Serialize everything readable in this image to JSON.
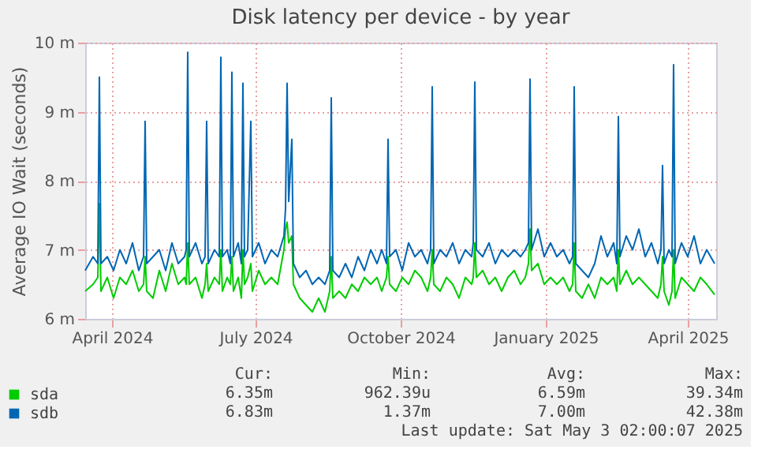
{
  "chart_data": {
    "type": "line",
    "title": "Disk latency per device - by year",
    "ylabel": "Average IO Wait (seconds)",
    "x": [
      "2024-03-29",
      "2024-04-03",
      "2024-04-06",
      "2024-04-07",
      "2024-04-08",
      "2024-04-12",
      "2024-04-16",
      "2024-04-20",
      "2024-04-24",
      "2024-04-28",
      "2024-05-02",
      "2024-05-05",
      "2024-05-06",
      "2024-05-07",
      "2024-05-11",
      "2024-05-15",
      "2024-05-19",
      "2024-05-23",
      "2024-05-27",
      "2024-05-31",
      "2024-06-01",
      "2024-06-02",
      "2024-06-03",
      "2024-06-07",
      "2024-06-11",
      "2024-06-13",
      "2024-06-14",
      "2024-06-15",
      "2024-06-19",
      "2024-06-22",
      "2024-06-23",
      "2024-06-24",
      "2024-06-27",
      "2024-06-29",
      "2024-06-30",
      "2024-07-01",
      "2024-07-04",
      "2024-07-06",
      "2024-07-07",
      "2024-07-08",
      "2024-07-10",
      "2024-07-12",
      "2024-07-13",
      "2024-07-17",
      "2024-07-21",
      "2024-07-25",
      "2024-07-29",
      "2024-08-02",
      "2024-08-03",
      "2024-08-04",
      "2024-08-05",
      "2024-08-07",
      "2024-08-08",
      "2024-08-12",
      "2024-08-16",
      "2024-08-20",
      "2024-08-24",
      "2024-08-28",
      "2024-08-31",
      "2024-09-01",
      "2024-09-02",
      "2024-09-06",
      "2024-09-10",
      "2024-09-14",
      "2024-09-18",
      "2024-09-22",
      "2024-09-26",
      "2024-09-30",
      "2024-10-03",
      "2024-10-06",
      "2024-10-07",
      "2024-10-08",
      "2024-10-12",
      "2024-10-16",
      "2024-10-20",
      "2024-10-24",
      "2024-10-28",
      "2024-11-01",
      "2024-11-03",
      "2024-11-04",
      "2024-11-05",
      "2024-11-09",
      "2024-11-13",
      "2024-11-17",
      "2024-11-21",
      "2024-11-25",
      "2024-11-29",
      "2024-11-30",
      "2024-12-01",
      "2024-12-02",
      "2024-12-06",
      "2024-12-10",
      "2024-12-14",
      "2024-12-18",
      "2024-12-22",
      "2024-12-26",
      "2024-12-30",
      "2025-01-02",
      "2025-01-04",
      "2025-01-05",
      "2025-01-06",
      "2025-01-10",
      "2025-01-14",
      "2025-01-18",
      "2025-01-22",
      "2025-01-26",
      "2025-01-30",
      "2025-02-01",
      "2025-02-02",
      "2025-02-03",
      "2025-02-07",
      "2025-02-11",
      "2025-02-15",
      "2025-02-19",
      "2025-02-23",
      "2025-02-27",
      "2025-03-01",
      "2025-03-02",
      "2025-03-03",
      "2025-03-07",
      "2025-03-11",
      "2025-03-15",
      "2025-03-19",
      "2025-03-23",
      "2025-03-27",
      "2025-03-29",
      "2025-03-30",
      "2025-03-31",
      "2025-04-03",
      "2025-04-05",
      "2025-04-06",
      "2025-04-07",
      "2025-04-11",
      "2025-04-15",
      "2025-04-19",
      "2025-04-23",
      "2025-04-27",
      "2025-05-02"
    ],
    "series": [
      {
        "name": "sda",
        "color": "#00cc00",
        "values": [
          6.4,
          6.5,
          6.6,
          7.67,
          6.4,
          6.6,
          6.3,
          6.6,
          6.5,
          6.7,
          6.4,
          6.5,
          6.9,
          6.4,
          6.3,
          6.7,
          6.4,
          6.8,
          6.5,
          6.6,
          6.5,
          7.1,
          6.5,
          6.6,
          6.3,
          6.5,
          6.8,
          6.4,
          6.6,
          6.5,
          7.0,
          6.4,
          6.6,
          6.5,
          6.9,
          6.4,
          6.6,
          6.3,
          7.0,
          6.5,
          6.6,
          6.8,
          6.4,
          6.7,
          6.5,
          6.6,
          6.5,
          7.0,
          7.3,
          7.4,
          7.1,
          7.2,
          6.5,
          6.3,
          6.2,
          6.1,
          6.3,
          6.1,
          6.4,
          6.9,
          6.3,
          6.4,
          6.3,
          6.5,
          6.4,
          6.6,
          6.5,
          6.6,
          6.4,
          6.6,
          6.9,
          6.5,
          6.4,
          6.6,
          6.5,
          6.7,
          6.6,
          6.4,
          6.6,
          7.0,
          6.5,
          6.4,
          6.6,
          6.5,
          6.3,
          6.6,
          6.5,
          6.6,
          7.1,
          6.6,
          6.7,
          6.5,
          6.6,
          6.4,
          6.6,
          6.7,
          6.5,
          6.6,
          6.8,
          7.3,
          6.7,
          6.8,
          6.5,
          6.6,
          6.5,
          6.6,
          6.4,
          6.5,
          7.1,
          6.4,
          6.3,
          6.5,
          6.3,
          6.6,
          6.5,
          6.6,
          6.4,
          7.0,
          6.5,
          6.7,
          6.5,
          6.6,
          6.5,
          6.4,
          6.3,
          6.5,
          6.9,
          6.4,
          6.2,
          6.4,
          7.0,
          6.3,
          6.6,
          6.5,
          6.4,
          6.6,
          6.5,
          6.35
        ]
      },
      {
        "name": "sdb",
        "color": "#0066b3",
        "values": [
          6.7,
          6.9,
          6.8,
          9.5,
          6.8,
          6.9,
          6.7,
          7.0,
          6.8,
          7.1,
          6.7,
          6.9,
          8.86,
          6.8,
          6.9,
          7.0,
          6.7,
          7.1,
          6.8,
          6.9,
          7.0,
          9.86,
          6.9,
          7.1,
          6.8,
          6.9,
          8.86,
          6.8,
          7.0,
          6.9,
          9.79,
          6.9,
          7.0,
          6.8,
          9.57,
          6.9,
          7.1,
          6.8,
          9.41,
          6.9,
          7.0,
          8.86,
          6.9,
          7.1,
          6.8,
          7.0,
          6.9,
          7.2,
          7.6,
          9.41,
          7.7,
          8.6,
          6.8,
          6.6,
          6.7,
          6.5,
          6.6,
          6.5,
          6.7,
          9.2,
          6.7,
          6.6,
          6.8,
          6.6,
          6.9,
          6.7,
          7.0,
          6.8,
          7.0,
          6.8,
          8.6,
          6.9,
          7.0,
          6.7,
          7.1,
          6.9,
          7.0,
          6.8,
          7.0,
          9.36,
          6.8,
          7.0,
          6.9,
          7.1,
          6.8,
          7.0,
          6.9,
          7.1,
          9.43,
          7.0,
          6.9,
          7.1,
          6.8,
          7.0,
          6.9,
          7.0,
          6.9,
          7.0,
          7.1,
          9.47,
          7.0,
          7.3,
          6.9,
          7.1,
          6.9,
          7.0,
          6.8,
          6.9,
          9.36,
          6.8,
          6.7,
          6.6,
          6.8,
          7.2,
          6.9,
          7.1,
          6.8,
          8.93,
          6.9,
          7.2,
          7.0,
          7.3,
          6.9,
          7.1,
          6.8,
          7.0,
          8.22,
          6.8,
          7.0,
          6.9,
          9.68,
          6.8,
          7.1,
          6.9,
          7.2,
          6.8,
          7.0,
          6.8
        ]
      }
    ],
    "xlim": [
      "2024-03-29",
      "2025-05-03"
    ],
    "xticks": [
      {
        "value": "2024-04-15",
        "label": "April 2024"
      },
      {
        "value": "2024-07-15",
        "label": "July 2024"
      },
      {
        "value": "2024-10-15",
        "label": "October 2024"
      },
      {
        "value": "2025-01-15",
        "label": "January 2025"
      },
      {
        "value": "2025-04-15",
        "label": "April 2025"
      }
    ],
    "ylim": [
      6,
      10
    ],
    "yticks": [
      {
        "value": 6,
        "label": "6 m"
      },
      {
        "value": 7,
        "label": "7 m"
      },
      {
        "value": 8,
        "label": "8 m"
      },
      {
        "value": 9,
        "label": "9 m"
      },
      {
        "value": 10,
        "label": "10 m"
      }
    ],
    "grid": true,
    "legend": "bottom left",
    "annotations": [
      "Cur:",
      "Min:",
      "Avg:",
      "Max:",
      "6.35m",
      "962.39u",
      "6.59m",
      "39.34m",
      "6.83m",
      "1.37m",
      "7.00m",
      "42.38m",
      "Last update: Sat May  3 02:00:07 2025"
    ]
  }
}
